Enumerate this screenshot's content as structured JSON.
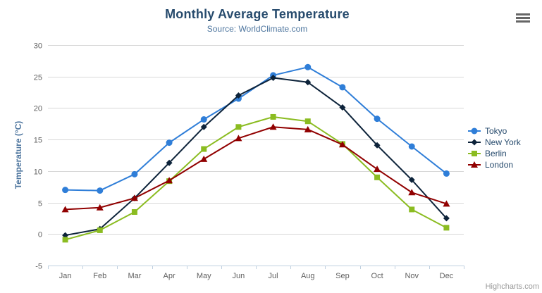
{
  "header": {
    "title": "Monthly Average Temperature",
    "subtitle": "Source: WorldClimate.com"
  },
  "exporting": {
    "menu_icon": "hamburger-icon"
  },
  "credits": {
    "label": "Highcharts.com"
  },
  "chart_data": {
    "type": "line",
    "title": "Monthly Average Temperature",
    "subtitle": "Source: WorldClimate.com",
    "categories": [
      "Jan",
      "Feb",
      "Mar",
      "Apr",
      "May",
      "Jun",
      "Jul",
      "Aug",
      "Sep",
      "Oct",
      "Nov",
      "Dec"
    ],
    "series": [
      {
        "name": "Tokyo",
        "color": "#2f7ed8",
        "marker": "circle",
        "values": [
          7.0,
          6.9,
          9.5,
          14.5,
          18.2,
          21.5,
          25.2,
          26.5,
          23.3,
          18.3,
          13.9,
          9.6
        ]
      },
      {
        "name": "New York",
        "color": "#0d233a",
        "marker": "diamond",
        "values": [
          -0.2,
          0.8,
          5.7,
          11.3,
          17.0,
          22.0,
          24.8,
          24.1,
          20.1,
          14.1,
          8.6,
          2.5
        ]
      },
      {
        "name": "Berlin",
        "color": "#8bbc21",
        "marker": "square",
        "values": [
          -0.9,
          0.6,
          3.5,
          8.4,
          13.5,
          17.0,
          18.6,
          17.9,
          14.3,
          9.0,
          3.9,
          1.0
        ]
      },
      {
        "name": "London",
        "color": "#910000",
        "marker": "triangle",
        "values": [
          3.9,
          4.2,
          5.7,
          8.5,
          11.9,
          15.2,
          17.0,
          16.6,
          14.2,
          10.3,
          6.6,
          4.8
        ]
      }
    ],
    "xlabel": "",
    "ylabel": "Temperature (°C)",
    "ylim": [
      -5,
      30
    ],
    "yticks": [
      -5,
      0,
      5,
      10,
      15,
      20,
      25,
      30
    ],
    "grid": true,
    "legend_position": "right-middle-vertical"
  },
  "colors": {
    "title": "#274b6d",
    "subtitle": "#4d759e",
    "axis_title": "#4d759e",
    "axis_label": "#606060",
    "legend_text": "#274b6d",
    "grid_line": "#d8d8d8",
    "axis_line": "#c0d0e0",
    "credits": "#999999",
    "menu_icon": "#666666",
    "background": "#ffffff"
  }
}
